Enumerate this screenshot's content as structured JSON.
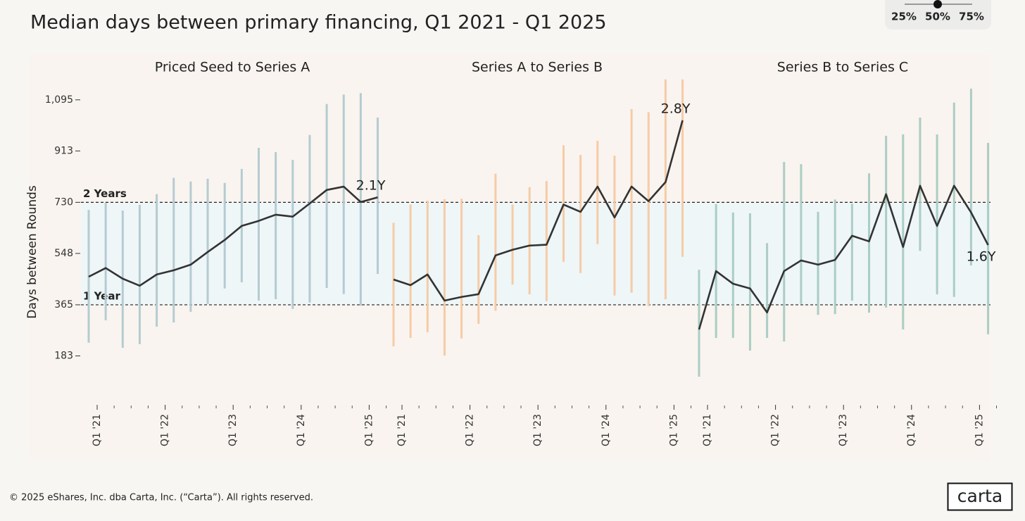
{
  "chart_data": {
    "type": "line",
    "title": "Median days between primary financing, Q1 2021 - Q1 2025",
    "y_label": "Days between Rounds",
    "ylim": [
      0,
      1250
    ],
    "yticks": [
      183,
      365,
      548,
      730,
      913,
      {
        "value": 1095,
        "label": "1,095"
      }
    ],
    "reference_lines": [
      {
        "value": 730,
        "label": "2 Years"
      },
      {
        "value": 365,
        "label": "1 Year"
      }
    ],
    "percentile_options": [
      "25%",
      "50%",
      "75%"
    ],
    "selected_percentile": "50%",
    "categories": [
      "Q1 '21",
      null,
      null,
      null,
      "Q1 '22",
      null,
      null,
      null,
      "Q1 '23",
      null,
      null,
      null,
      "Q1 '24",
      null,
      null,
      null,
      "Q1 '25",
      null
    ],
    "panels": [
      {
        "title": "Priced Seed to Series A",
        "color": "#b5cbd2",
        "end_label": "2.1Y",
        "median": [
          465,
          496,
          458,
          433,
          473,
          488,
          508,
          553,
          596,
          646,
          664,
          686,
          679,
          726,
          774,
          786,
          731,
          748
        ],
        "p25": [
          230,
          310,
          212,
          225,
          287,
          302,
          340,
          368,
          423,
          445,
          380,
          385,
          350,
          373,
          425,
          403,
          362,
          475
        ],
        "p75": [
          703,
          728,
          701,
          721,
          759,
          817,
          804,
          814,
          799,
          849,
          924,
          909,
          881,
          970,
          1080,
          1114,
          1119,
          1032
        ]
      },
      {
        "title": "Series A to Series B",
        "color": "#f6cba7",
        "end_label": "2.8Y",
        "median": [
          455,
          435,
          473,
          380,
          393,
          403,
          541,
          561,
          576,
          579,
          722,
          696,
          786,
          676,
          786,
          734,
          802,
          1022
        ],
        "p25": [
          217,
          247,
          267,
          184,
          245,
          297,
          344,
          437,
          402,
          378,
          518,
          478,
          581,
          398,
          408,
          360,
          385,
          536
        ],
        "p75": [
          657,
          722,
          736,
          741,
          743,
          613,
          832,
          722,
          784,
          806,
          933,
          899,
          949,
          896,
          1062,
          1051,
          1168,
          1168
        ]
      },
      {
        "title": "Series B to Series C",
        "color": "#abcdc5",
        "end_label": "1.6Y",
        "median": [
          277,
          485,
          440,
          423,
          338,
          485,
          523,
          508,
          525,
          611,
          591,
          759,
          571,
          789,
          646,
          789,
          694,
          578
        ],
        "p25": [
          109,
          247,
          247,
          202,
          247,
          234,
          368,
          329,
          332,
          380,
          337,
          355,
          277,
          557,
          402,
          393,
          505,
          260
        ],
        "p75": [
          490,
          724,
          694,
          691,
          585,
          874,
          866,
          696,
          740,
          725,
          833,
          967,
          972,
          1032,
          972,
          1085,
          1135,
          942
        ]
      }
    ]
  },
  "footer": {
    "copyright": "© 2025 eShares, Inc. dba Carta, Inc. (“Carta”). All rights reserved.",
    "logo": "carta"
  }
}
